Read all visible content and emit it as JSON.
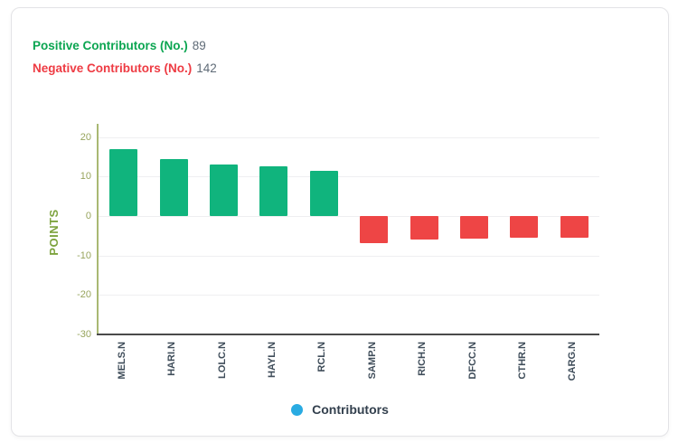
{
  "header": {
    "positive_label": "Positive Contributors (No.)",
    "positive_value": "89",
    "negative_label": "Negative Contributors (No.)",
    "negative_value": "142"
  },
  "legend": {
    "label": "Contributors",
    "dot_color": "#29abe2"
  },
  "colors": {
    "positive_text": "#0ba551",
    "negative_text": "#ee3b43",
    "count_text": "#5f6b77",
    "positive_bar": "#10b47d",
    "negative_bar": "#ee4545",
    "axis_line": "#a9b873",
    "x_axis_line": "#4a4a4a",
    "tick_text": "#97a45c",
    "points_label_text": "#7da33e",
    "category_text": "#3f4d5a",
    "gridline": "#efeff1",
    "legend_dot": "#29abe2"
  },
  "chart_data": {
    "type": "bar",
    "categories": [
      "MELS.N",
      "HARI.N",
      "LOLC.N",
      "HAYL.N",
      "RCL.N",
      "SAMP.N",
      "RICH.N",
      "DFCC.N",
      "CTHR.N",
      "CARG.N"
    ],
    "values": [
      17,
      14.5,
      13,
      12.5,
      11.5,
      -6.8,
      -6,
      -5.8,
      -5.6,
      -5.4
    ],
    "title": "",
    "xlabel": "",
    "ylabel": "POINTS",
    "yticks": [
      20,
      10,
      0,
      -10,
      -20,
      -30
    ],
    "ylim": [
      -30,
      20
    ],
    "grid": true,
    "legend_entries": [
      "Contributors"
    ],
    "legend_position": "bottom",
    "positive_color": "#10b47d",
    "negative_color": "#ee4545"
  }
}
